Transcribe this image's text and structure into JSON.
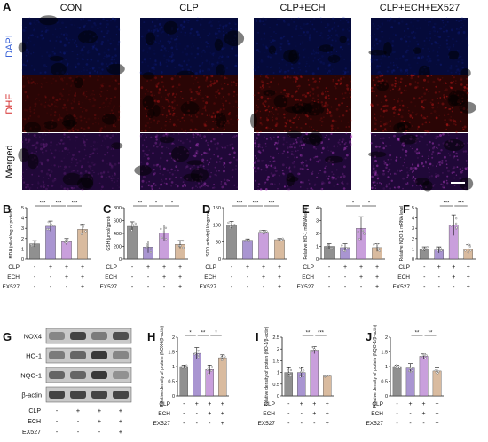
{
  "panel_a": {
    "letter": "A",
    "columns": [
      "CON",
      "CLP",
      "CLP+ECH",
      "CLP+ECH+EX527"
    ],
    "rows": [
      {
        "label": "DAPI",
        "color": "#3a63d8",
        "tint": "#1a2fb4",
        "base": "#050a3a"
      },
      {
        "label": "DHE",
        "color": "#d52b2b",
        "tint": "#c41a1a",
        "base": "#2a0505"
      },
      {
        "label": "Merged",
        "color": "#111111",
        "tint": "#b23fc4",
        "base": "#200838"
      }
    ]
  },
  "group_labels": {
    "clp": "CLP",
    "ech": "ECH",
    "ex527": "EX527"
  },
  "signs": {
    "clp": [
      "-",
      "+",
      "+",
      "+"
    ],
    "ech": [
      "-",
      "-",
      "+",
      "+"
    ],
    "ex527": [
      "-",
      "-",
      "-",
      "+"
    ]
  },
  "bar_colors": [
    "#7d7d7d",
    "#9b83c9",
    "#c08fd6",
    "#d3b08f"
  ],
  "chart_data": [
    {
      "letter": "B",
      "type": "bar",
      "ylabel": "MDA (nMol/mg of protein)",
      "ylim": [
        0,
        5
      ],
      "ticks": [
        0,
        1,
        2,
        3,
        4,
        5
      ],
      "values": [
        1.5,
        3.2,
        1.7,
        2.9
      ],
      "errors": [
        0.3,
        0.5,
        0.3,
        0.5
      ],
      "sig": [
        "***",
        "***",
        "***"
      ]
    },
    {
      "letter": "C",
      "type": "bar",
      "ylabel": "GSH (μmol/gprot)",
      "ylim": [
        0,
        800
      ],
      "ticks": [
        0,
        200,
        400,
        600,
        800
      ],
      "values": [
        510,
        190,
        410,
        230
      ],
      "errors": [
        70,
        90,
        120,
        60
      ],
      "sig": [
        "**",
        "*",
        "*"
      ]
    },
    {
      "letter": "D",
      "type": "bar",
      "ylabel": "SOD activity(U/mgprot)",
      "ylim": [
        0,
        150
      ],
      "ticks": [
        0,
        50,
        100,
        150
      ],
      "values": [
        100,
        55,
        78,
        57
      ],
      "errors": [
        10,
        4,
        6,
        3
      ],
      "sig": [
        "***",
        "***",
        "***"
      ]
    },
    {
      "letter": "E",
      "type": "bar",
      "ylabel": "Relative HO-1 mRNA level",
      "ylim": [
        0,
        4
      ],
      "ticks": [
        0,
        1,
        2,
        3,
        4
      ],
      "values": [
        1.0,
        0.9,
        2.4,
        0.9
      ],
      "errors": [
        0.2,
        0.3,
        0.9,
        0.3
      ],
      "sig": [
        "*",
        "*"
      ]
    },
    {
      "letter": "F",
      "type": "bar",
      "ylabel": "Relative NQO-1 mRNA level",
      "ylim": [
        0,
        5
      ],
      "ticks": [
        0,
        1,
        2,
        3,
        4,
        5
      ],
      "values": [
        1.0,
        0.9,
        3.3,
        1.0
      ],
      "errors": [
        0.2,
        0.3,
        1.0,
        0.4
      ],
      "sig": [
        "***",
        "***"
      ]
    },
    {
      "letter": "H",
      "type": "bar",
      "ylabel": "Relative density of protein (NOX4/β-actin)",
      "ylim": [
        0,
        2.0
      ],
      "ticks": [
        0.0,
        0.5,
        1.0,
        1.5,
        2.0
      ],
      "values": [
        1.0,
        1.45,
        0.9,
        1.3
      ],
      "errors": [
        0.05,
        0.2,
        0.15,
        0.1
      ],
      "sig": [
        "*",
        "**",
        "*"
      ]
    },
    {
      "letter": "I",
      "type": "bar",
      "ylabel": "Relative density of protein (HO-1/β-actin)",
      "ylim": [
        0,
        2.5
      ],
      "ticks": [
        0.0,
        0.5,
        1.0,
        1.5,
        2.0,
        2.5
      ],
      "values": [
        1.0,
        1.0,
        1.95,
        0.85
      ],
      "errors": [
        0.2,
        0.2,
        0.15,
        0.03
      ],
      "sig": [
        "**",
        "***"
      ]
    },
    {
      "letter": "J",
      "type": "bar",
      "ylabel": "Relative density of protein (NQO-1/β-actin)",
      "ylim": [
        0,
        2.0
      ],
      "ticks": [
        0.0,
        0.5,
        1.0,
        1.5,
        2.0
      ],
      "values": [
        1.0,
        0.95,
        1.35,
        0.85
      ],
      "errors": [
        0.05,
        0.15,
        0.08,
        0.1
      ],
      "sig": [
        "**",
        "**"
      ]
    }
  ],
  "blot": {
    "letter": "G",
    "rows": [
      {
        "label": "NOX4",
        "intensity": [
          0.55,
          0.85,
          0.6,
          0.8
        ]
      },
      {
        "label": "HO-1",
        "intensity": [
          0.6,
          0.7,
          0.9,
          0.55
        ]
      },
      {
        "label": "NQO-1",
        "intensity": [
          0.7,
          0.7,
          0.9,
          0.5
        ]
      },
      {
        "label": "β-actin",
        "intensity": [
          0.85,
          0.85,
          0.85,
          0.85
        ]
      }
    ]
  }
}
